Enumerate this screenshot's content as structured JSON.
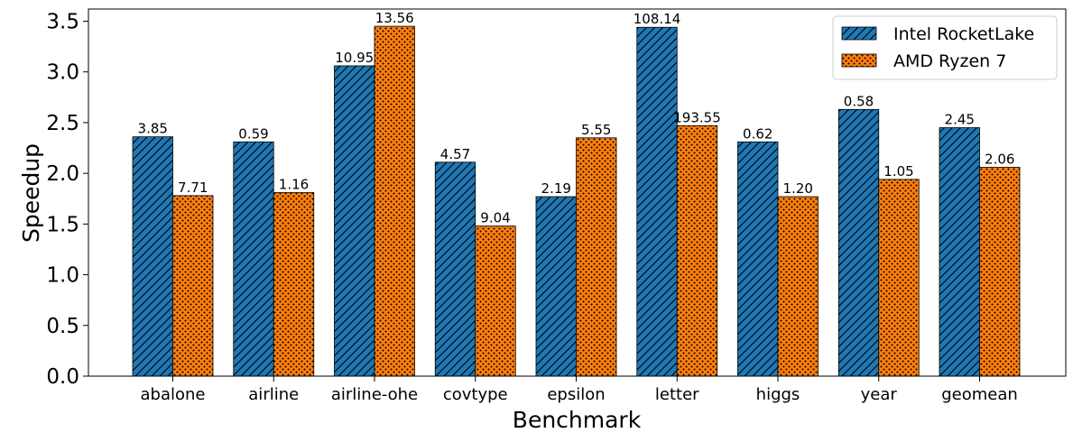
{
  "chart_data": {
    "type": "bar",
    "xlabel": "Benchmark",
    "ylabel": "Speedup",
    "ylim": [
      0,
      3.62
    ],
    "yticks": [
      "0.0",
      "0.5",
      "1.0",
      "1.5",
      "2.0",
      "2.5",
      "3.0",
      "3.5"
    ],
    "grid": false,
    "legend_position": "top-right",
    "categories": [
      "abalone",
      "airline",
      "airline-ohe",
      "covtype",
      "epsilon",
      "letter",
      "higgs",
      "year",
      "geomean"
    ],
    "series": [
      {
        "name": "Intel RocketLake",
        "color": "#1f77b4",
        "hatch": "diagonal",
        "values": [
          2.36,
          2.31,
          3.06,
          2.11,
          1.77,
          3.44,
          2.31,
          2.63,
          2.45
        ],
        "labels": [
          "3.85",
          "0.59",
          "10.95",
          "4.57",
          "2.19",
          "108.14",
          "0.62",
          "0.58",
          "2.45"
        ]
      },
      {
        "name": "AMD Ryzen 7",
        "color": "#ff7f0e",
        "hatch": "dots",
        "values": [
          1.78,
          1.81,
          3.45,
          1.48,
          2.35,
          2.47,
          1.77,
          1.94,
          2.06
        ],
        "labels": [
          "7.71",
          "1.16",
          "13.56",
          "9.04",
          "5.55",
          "193.55",
          "1.20",
          "1.05",
          "2.06"
        ]
      }
    ]
  }
}
